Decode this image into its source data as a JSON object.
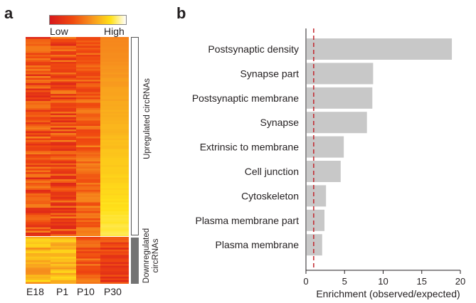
{
  "panel_a": {
    "letter": "a",
    "scale": {
      "low": "Low",
      "high": "High"
    },
    "columns": [
      "E18",
      "P1",
      "P10",
      "P30"
    ],
    "groups": [
      "Upregulated circRNAs",
      "Downregulated circRNAs"
    ],
    "group_label_lines": {
      "down_line1": "Downregulated",
      "down_line2": "circRNAs"
    },
    "colors": {
      "low": "#d7191c",
      "mid": "#f7931e",
      "high": "#ffe119",
      "bracket_up_fill": "#ffffff",
      "bracket_down_fill": "#737373"
    }
  },
  "chart_data": {
    "type": "bar",
    "orientation": "horizontal",
    "panel_letter": "b",
    "categories": [
      "Postsynaptic density",
      "Synapse part",
      "Postsynaptic membrane",
      "Synapse",
      "Extrinsic to membrane",
      "Cell junction",
      "Cytoskeleton",
      "Plasma membrane part",
      "Plasma membrane"
    ],
    "values": [
      18.9,
      8.7,
      8.6,
      7.9,
      4.9,
      4.5,
      2.6,
      2.4,
      2.1
    ],
    "xlabel": "Enrichment (observed/expected)",
    "ylabel": "",
    "xlim": [
      0,
      20
    ],
    "xticks": [
      0,
      5,
      10,
      15,
      20
    ],
    "reference_line": 1,
    "colors": {
      "bar": "#c8c8c8",
      "reference_line": "#c1272d",
      "axis": "#231f20"
    }
  }
}
